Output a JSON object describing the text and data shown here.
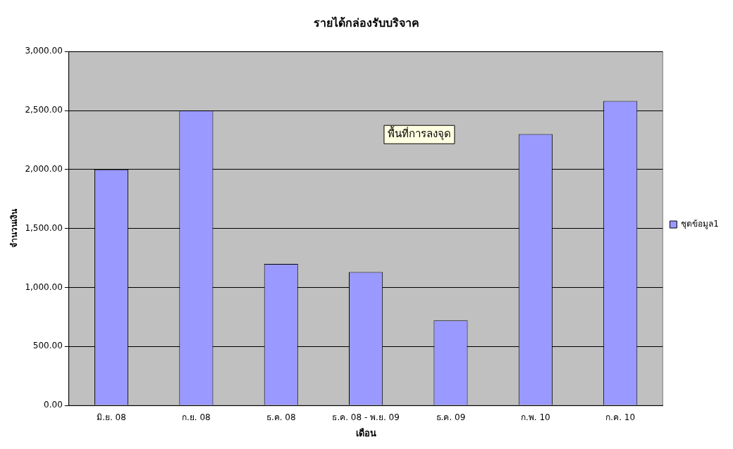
{
  "chart_data": {
    "type": "bar",
    "title": "รายได้กล่องรับบริจาค",
    "xlabel": "เดือน",
    "ylabel": "จำนวนเงิน",
    "categories": [
      "มิ.ย. 08",
      "ก.ย. 08",
      "ธ.ค. 08",
      "ธ.ค. 08 - พ.ย. 09",
      "ธ.ค. 09",
      "ก.พ. 10",
      "ก.ค. 10"
    ],
    "series": [
      {
        "name": "ชุดข้อมูล1",
        "color": "#9999ff",
        "values": [
          2000,
          2500,
          1200,
          1130,
          720,
          2300,
          2580
        ]
      }
    ],
    "ylim": [
      0,
      3000
    ],
    "yticks": [
      {
        "value": 0,
        "label": "0.00"
      },
      {
        "value": 500,
        "label": "500.00"
      },
      {
        "value": 1000,
        "label": "1,000.00"
      },
      {
        "value": 1500,
        "label": "1,500.00"
      },
      {
        "value": 2000,
        "label": "2,000.00"
      },
      {
        "value": 2500,
        "label": "2,500.00"
      },
      {
        "value": 3000,
        "label": "3,000.00"
      }
    ],
    "grid": "y",
    "legend": "right",
    "annotations": [
      "พื้นที่การลงจุด"
    ]
  }
}
